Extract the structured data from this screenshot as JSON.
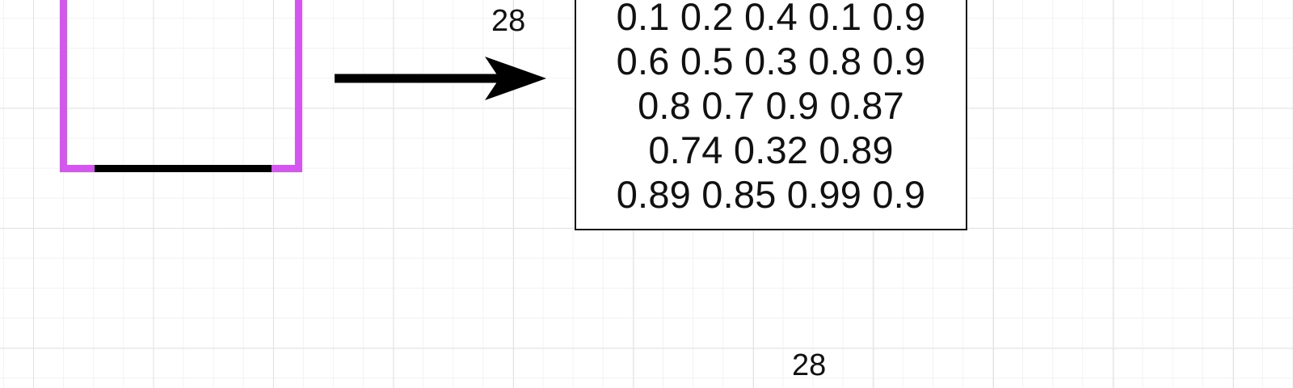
{
  "diagram": {
    "dimension_label_top": "28",
    "dimension_label_bottom": "28",
    "matrix_rows": [
      "0.1 0.2 0.4 0.1 0.9",
      "0.6 0.5 0.3 0.8 0.9",
      "0.8 0.7 0.9 0.87",
      "0.74 0.32 0.89",
      "0.89 0.85 0.99 0.9"
    ]
  },
  "colors": {
    "background": "#ffffff",
    "grid_major": "#e2e2e2",
    "grid_minor": "#f2f2f2",
    "box_outline_accent": "#d455f0",
    "stroke": "#000000",
    "text": "#111111"
  }
}
